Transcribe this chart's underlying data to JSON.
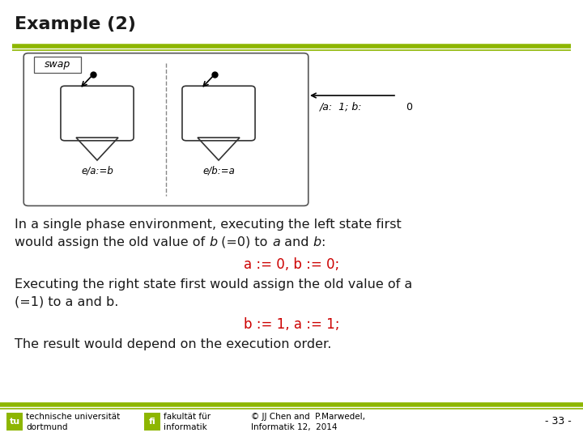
{
  "title": "Example (2)",
  "title_fontsize": 16,
  "title_fontweight": "bold",
  "bg_color": "#ffffff",
  "green_line_color": "#8db600",
  "text_color": "#1a1a1a",
  "red_text_color": "#cc0000",
  "line1": "In a single phase environment, executing the left state first",
  "line2a": "would assign the old value of ",
  "line2b": "b",
  "line2c": " (=0) to ",
  "line2d": "a",
  "line2e": " and ",
  "line2f": "b",
  "line2g": ":",
  "red_line1": "a := 0, b := 0;",
  "line3": "Executing the right state first would assign the old value of a",
  "line4": "(=1) to a and b.",
  "red_line2": "b := 1, a := 1;",
  "line5": "The result would depend on the execution order.",
  "footer_left1": "technische universität",
  "footer_left2": "dortmund",
  "footer_mid1": "fakultät für",
  "footer_mid2": "informatik",
  "footer_right1": "© JJ Chen and  P.Marwedel,",
  "footer_right2": "Informatik 12,  2014",
  "footer_page": "- 33 -"
}
